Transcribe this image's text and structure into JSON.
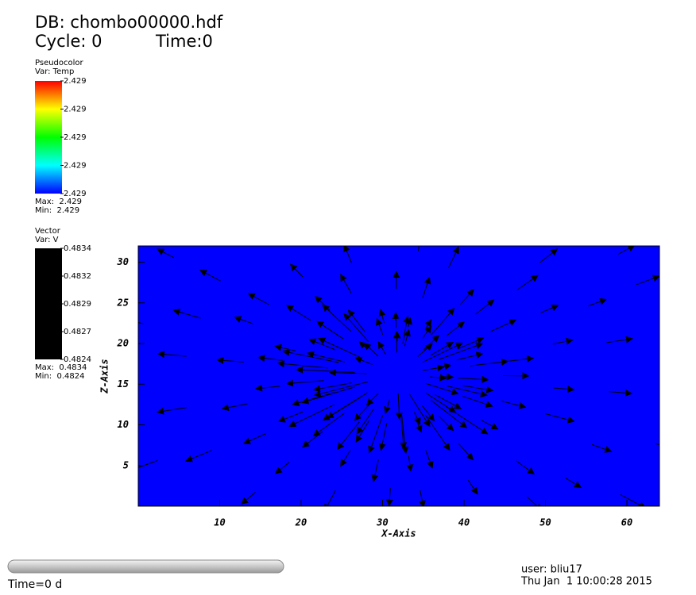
{
  "header": {
    "database": "DB: chombo00000.hdf",
    "cycle": "Cycle: 0",
    "time": "Time:0"
  },
  "pseudocolor_legend": {
    "title": "Pseudocolor",
    "variable": "Var: Temp",
    "labels": [
      "2.429",
      "2.429",
      "2.429",
      "2.429",
      "2.429"
    ],
    "max": "Max:  2.429",
    "min": "Min:  2.429"
  },
  "vector_legend": {
    "title": "Vector",
    "variable": "Var: V",
    "labels": [
      "0.4834",
      "0.4832",
      "0.4829",
      "0.4827",
      "0.4824"
    ],
    "max": "Max:  0.4834",
    "min": "Min:  0.4824"
  },
  "plot": {
    "x_label": "X-Axis",
    "y_label": "Z-Axis",
    "xlim": [
      0,
      64
    ],
    "ylim": [
      0,
      32
    ],
    "xticks": [
      10,
      20,
      30,
      40,
      50,
      60
    ],
    "yticks": [
      5,
      10,
      15,
      20,
      25,
      30
    ]
  },
  "footer": {
    "time_slider": "Time=0 d",
    "user": "user: bliu17",
    "date": "Thu Jan  1 10:00:28 2015"
  }
}
